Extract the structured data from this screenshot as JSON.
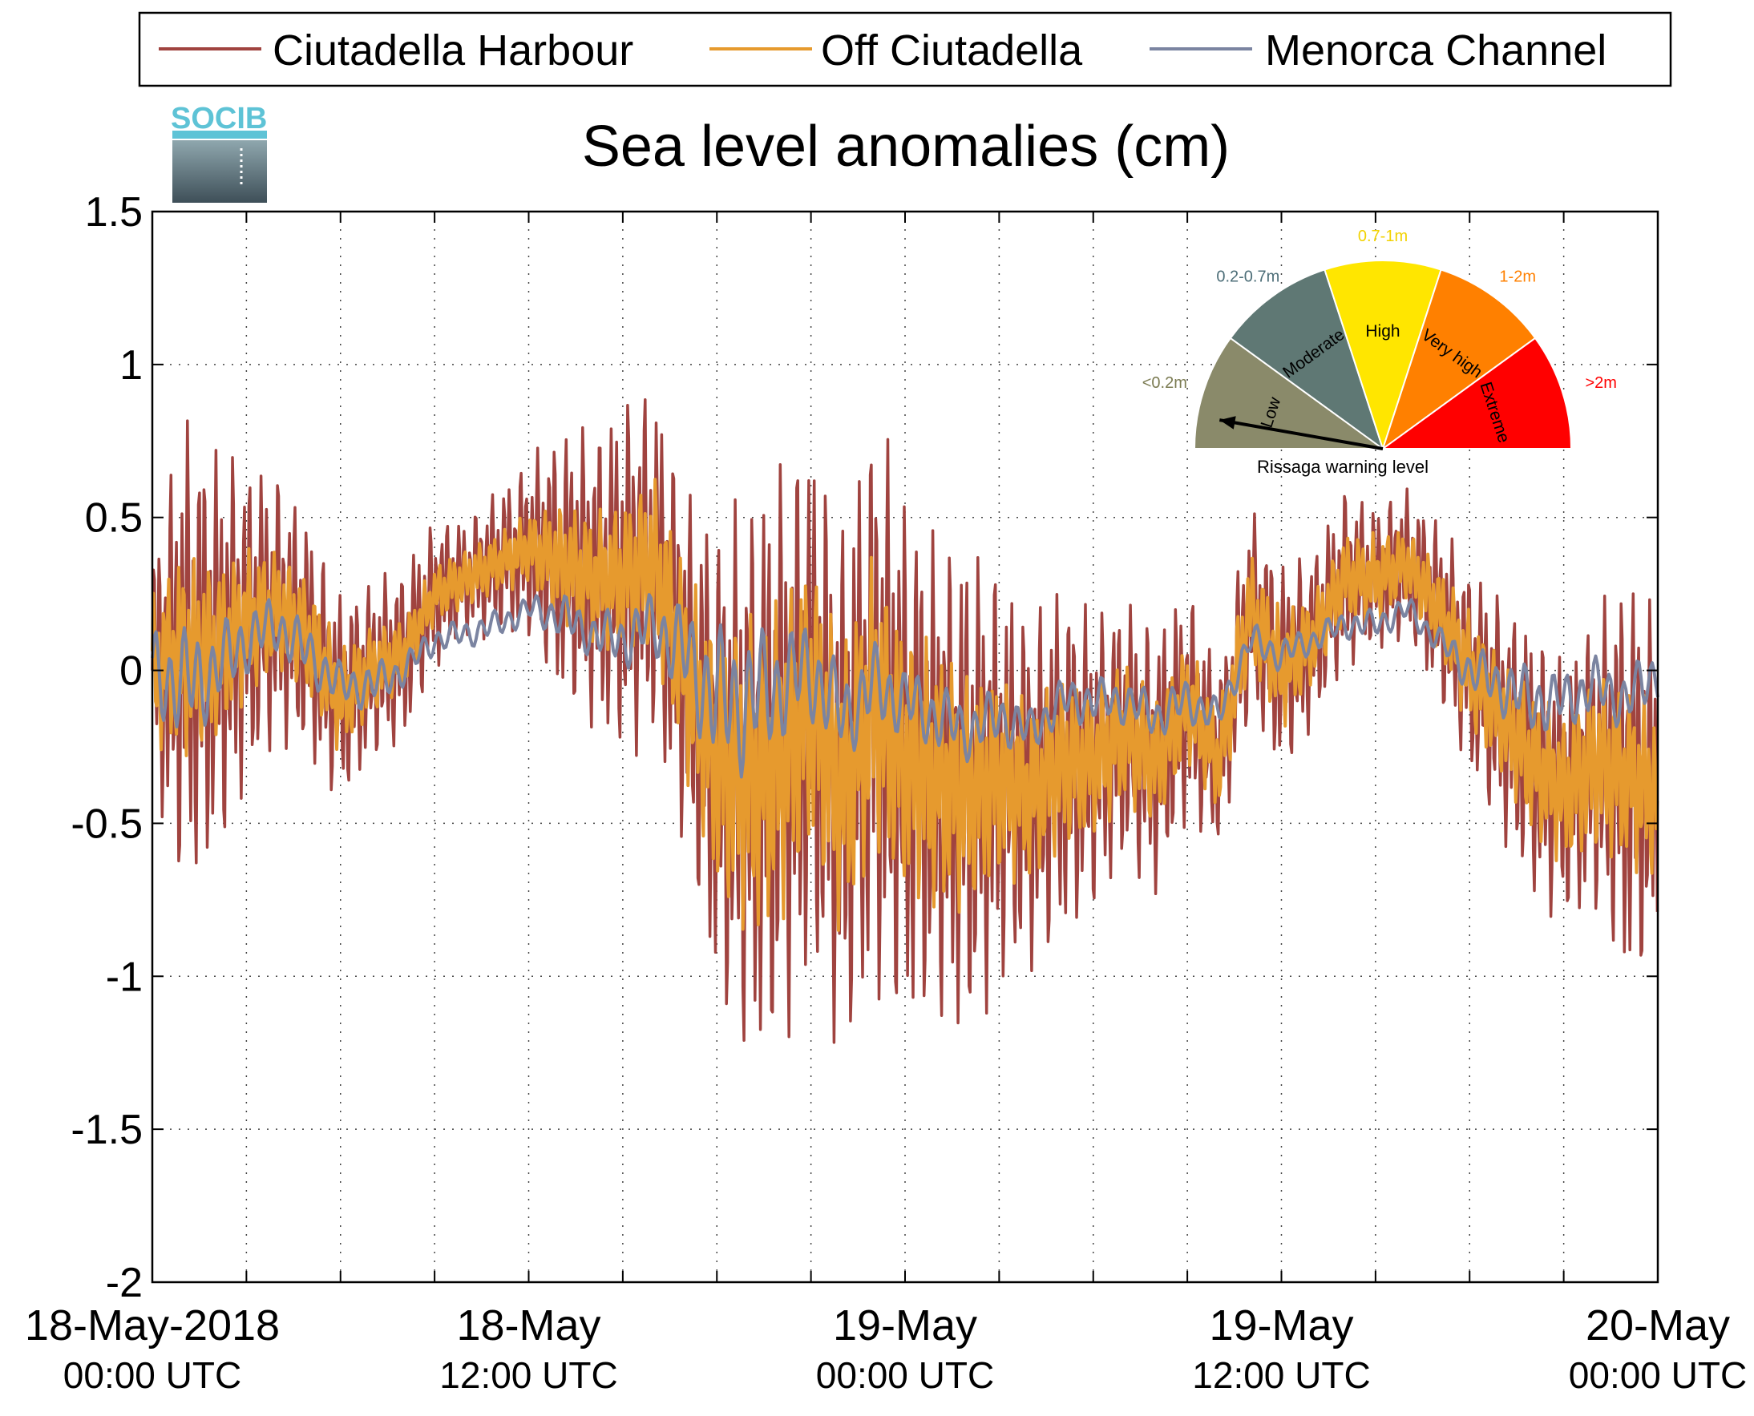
{
  "chart_data": {
    "type": "line",
    "title": "Sea level anomalies (cm)",
    "xlabel": "",
    "ylabel": "",
    "ylim": [
      -2,
      1.5
    ],
    "yticks": [
      "1.5",
      "1",
      "0.5",
      "0",
      "-0.5",
      "-1",
      "-1.5",
      "-2"
    ],
    "ytick_values": [
      1.5,
      1,
      0.5,
      0,
      -0.5,
      -1,
      -1.5,
      -2
    ],
    "xlim_hours": [
      0,
      48
    ],
    "x_units": "hours from 18-May-2018 00:00 UTC",
    "xticks": [
      {
        "line1": "18-May-2018",
        "line2": "00:00 UTC",
        "hour": 0
      },
      {
        "line1": "18-May",
        "line2": "12:00 UTC",
        "hour": 12
      },
      {
        "line1": "19-May",
        "line2": "00:00 UTC",
        "hour": 24
      },
      {
        "line1": "19-May",
        "line2": "12:00 UTC",
        "hour": 36
      },
      {
        "line1": "20-May",
        "line2": "00:00 UTC",
        "hour": 48
      }
    ],
    "grid": true,
    "legend_position": "top",
    "series": [
      {
        "name": "Ciutadella Harbour",
        "color": "#a0433f",
        "hours": [
          0,
          1,
          2,
          3,
          4,
          5,
          6,
          7,
          8,
          9,
          10,
          11,
          12,
          13,
          14,
          15,
          16,
          17,
          18,
          19,
          20,
          21,
          22,
          23,
          24,
          25,
          26,
          27,
          28,
          29,
          30,
          31,
          32,
          33,
          34,
          35,
          36,
          37,
          38,
          39,
          40,
          41,
          42,
          43,
          44,
          45,
          46,
          47,
          48
        ],
        "center": [
          0.0,
          0.05,
          0.05,
          0.15,
          0.2,
          0.1,
          -0.1,
          0.0,
          0.05,
          0.25,
          0.3,
          0.35,
          0.4,
          0.35,
          0.3,
          0.3,
          0.35,
          0.0,
          -0.3,
          -0.35,
          -0.3,
          -0.1,
          -0.4,
          -0.1,
          -0.3,
          -0.35,
          -0.4,
          -0.35,
          -0.4,
          -0.3,
          -0.3,
          -0.2,
          -0.3,
          -0.1,
          -0.3,
          0.2,
          0.0,
          0.1,
          0.3,
          0.3,
          0.35,
          0.2,
          0.0,
          -0.15,
          -0.3,
          -0.4,
          -0.3,
          -0.35,
          -0.4
        ],
        "amplitude": [
          0.4,
          0.8,
          0.7,
          0.55,
          0.45,
          0.4,
          0.35,
          0.3,
          0.3,
          0.25,
          0.2,
          0.25,
          0.3,
          0.45,
          0.5,
          0.6,
          0.6,
          0.6,
          0.8,
          0.95,
          1.0,
          0.9,
          0.9,
          1.0,
          0.9,
          0.8,
          0.85,
          0.7,
          0.6,
          0.6,
          0.5,
          0.45,
          0.45,
          0.4,
          0.3,
          0.35,
          0.35,
          0.3,
          0.3,
          0.25,
          0.25,
          0.3,
          0.35,
          0.4,
          0.45,
          0.45,
          0.5,
          0.7,
          0.6
        ]
      },
      {
        "name": "Off Ciutadella",
        "color": "#e69a2e",
        "hours": [
          0,
          1,
          2,
          3,
          4,
          5,
          6,
          7,
          8,
          9,
          10,
          11,
          12,
          13,
          14,
          15,
          16,
          17,
          18,
          19,
          20,
          21,
          22,
          23,
          24,
          25,
          26,
          27,
          28,
          29,
          30,
          31,
          32,
          33,
          34,
          35,
          36,
          37,
          38,
          39,
          40,
          41,
          42,
          43,
          44,
          45,
          46,
          47,
          48
        ],
        "center": [
          0.0,
          0.05,
          0.05,
          0.15,
          0.2,
          0.1,
          -0.1,
          0.0,
          0.05,
          0.25,
          0.3,
          0.35,
          0.4,
          0.35,
          0.3,
          0.3,
          0.35,
          0.0,
          -0.3,
          -0.35,
          -0.3,
          -0.1,
          -0.4,
          -0.1,
          -0.3,
          -0.35,
          -0.4,
          -0.35,
          -0.4,
          -0.3,
          -0.3,
          -0.2,
          -0.3,
          -0.1,
          -0.3,
          0.2,
          0.0,
          0.1,
          0.3,
          0.3,
          0.35,
          0.2,
          0.0,
          -0.15,
          -0.3,
          -0.4,
          -0.3,
          -0.35,
          -0.4
        ],
        "amplitude": [
          0.25,
          0.35,
          0.3,
          0.25,
          0.2,
          0.2,
          0.18,
          0.15,
          0.12,
          0.1,
          0.1,
          0.1,
          0.12,
          0.2,
          0.22,
          0.25,
          0.3,
          0.35,
          0.45,
          0.55,
          0.55,
          0.5,
          0.5,
          0.5,
          0.45,
          0.45,
          0.4,
          0.35,
          0.3,
          0.3,
          0.25,
          0.25,
          0.22,
          0.2,
          0.18,
          0.2,
          0.2,
          0.15,
          0.15,
          0.15,
          0.12,
          0.15,
          0.2,
          0.2,
          0.25,
          0.25,
          0.3,
          0.3,
          0.3
        ]
      },
      {
        "name": "Menorca Channel",
        "color": "#7b84a1",
        "hours": [
          0,
          1,
          2,
          3,
          4,
          5,
          6,
          7,
          8,
          9,
          10,
          11,
          12,
          13,
          14,
          15,
          16,
          17,
          18,
          19,
          20,
          21,
          22,
          23,
          24,
          25,
          26,
          27,
          28,
          29,
          30,
          31,
          32,
          33,
          34,
          35,
          36,
          37,
          38,
          39,
          40,
          41,
          42,
          43,
          44,
          45,
          46,
          47,
          48
        ],
        "center": [
          0.0,
          -0.05,
          0.0,
          0.1,
          0.15,
          0.05,
          -0.05,
          -0.05,
          0.0,
          0.1,
          0.12,
          0.15,
          0.2,
          0.18,
          0.12,
          0.1,
          0.15,
          0.05,
          -0.1,
          -0.1,
          -0.05,
          0.0,
          -0.15,
          -0.05,
          -0.1,
          -0.15,
          -0.2,
          -0.15,
          -0.2,
          -0.1,
          -0.1,
          -0.1,
          -0.15,
          -0.1,
          -0.15,
          0.1,
          0.05,
          0.1,
          0.15,
          0.15,
          0.2,
          0.1,
          0.0,
          -0.05,
          -0.1,
          -0.1,
          -0.05,
          -0.1,
          0.0
        ],
        "amplitude": [
          0.15,
          0.2,
          0.15,
          0.12,
          0.1,
          0.1,
          0.08,
          0.08,
          0.06,
          0.05,
          0.05,
          0.05,
          0.05,
          0.08,
          0.08,
          0.1,
          0.12,
          0.18,
          0.25,
          0.25,
          0.2,
          0.18,
          0.15,
          0.15,
          0.12,
          0.12,
          0.1,
          0.1,
          0.08,
          0.08,
          0.08,
          0.08,
          0.08,
          0.08,
          0.06,
          0.06,
          0.06,
          0.05,
          0.05,
          0.05,
          0.05,
          0.05,
          0.08,
          0.1,
          0.12,
          0.1,
          0.1,
          0.1,
          0.1
        ]
      }
    ]
  },
  "logo": {
    "text": "SOCIB"
  },
  "gauge": {
    "caption": "Rissaga warning level",
    "pointer_sector": "Low",
    "sectors": [
      {
        "name": "Low",
        "range": "<0.2m",
        "color": "#8a8a6a",
        "range_color": "#7b7b52"
      },
      {
        "name": "Moderate",
        "range": "0.2-0.7m",
        "color": "#5f7874",
        "range_color": "#4d6e78"
      },
      {
        "name": "High",
        "range": "0.7-1m",
        "color": "#ffe600",
        "range_color": "#f2d200"
      },
      {
        "name": "Very high",
        "range": "1-2m",
        "color": "#ff8000",
        "range_color": "#ff8000"
      },
      {
        "name": "Extreme",
        "range": ">2m",
        "color": "#ff0000",
        "range_color": "#ff0000"
      }
    ]
  }
}
